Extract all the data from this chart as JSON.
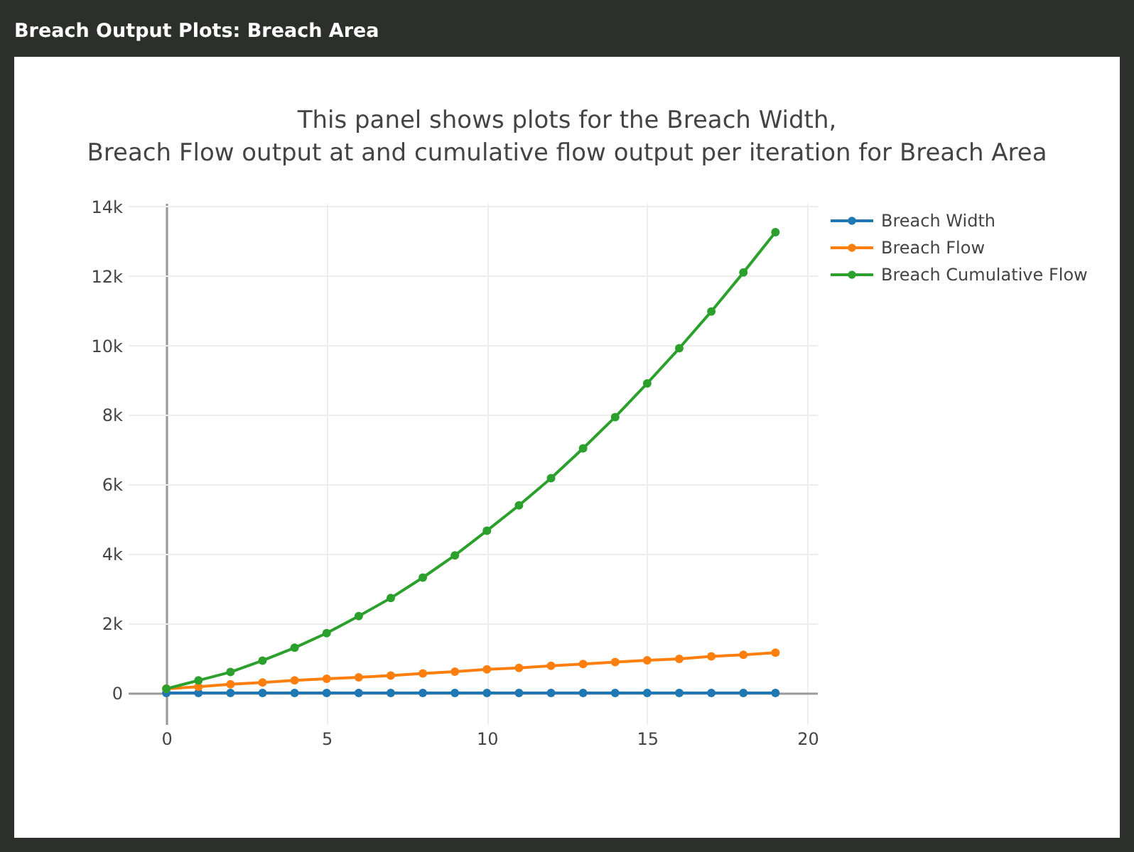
{
  "chart_data": {
    "type": "line",
    "title": "This panel shows plots for the Breach Width,\nBreach Flow output at and cumulative flow output per iteration for Breach Area",
    "annotations": [
      "Breach Output Plots: Breach Area"
    ],
    "x": [
      0,
      1,
      2,
      3,
      4,
      5,
      6,
      7,
      8,
      9,
      10,
      11,
      12,
      13,
      14,
      15,
      16,
      17,
      18,
      19
    ],
    "xlim": [
      -1.2,
      20.3
    ],
    "xticks": [
      0,
      5,
      10,
      15,
      20
    ],
    "ylim": [
      -900,
      14100
    ],
    "yticks": [
      0,
      {
        "value": 2000,
        "label": "2k"
      },
      {
        "value": 4000,
        "label": "4k"
      },
      {
        "value": 6000,
        "label": "6k"
      },
      {
        "value": 8000,
        "label": "8k"
      },
      {
        "value": 10000,
        "label": "10k"
      },
      {
        "value": 12000,
        "label": "12k"
      },
      {
        "value": 14000,
        "label": "14k"
      }
    ],
    "grid": true,
    "legend": "top right",
    "marker": "circle",
    "line_style": "solid",
    "series": [
      {
        "name": "Breach Width",
        "color": "#1f77b4",
        "values": [
          0,
          0,
          0,
          0,
          0,
          0,
          0,
          0,
          0,
          0,
          0,
          0,
          0,
          0,
          0,
          0,
          0,
          0,
          0,
          0
        ]
      },
      {
        "name": "Breach Flow",
        "color": "#ff7f0e",
        "values": [
          120,
          180,
          250,
          300,
          360,
          410,
          450,
          500,
          560,
          610,
          680,
          720,
          780,
          830,
          890,
          940,
          980,
          1050,
          1100,
          1160
        ]
      },
      {
        "name": "Breach Cumulative Flow",
        "color": "#2ca02c",
        "values": [
          120,
          360,
          600,
          930,
          1300,
          1720,
          2210,
          2730,
          3320,
          3960,
          4670,
          5400,
          6180,
          7040,
          7940,
          8910,
          9920,
          10980,
          12100,
          13260
        ]
      }
    ]
  }
}
